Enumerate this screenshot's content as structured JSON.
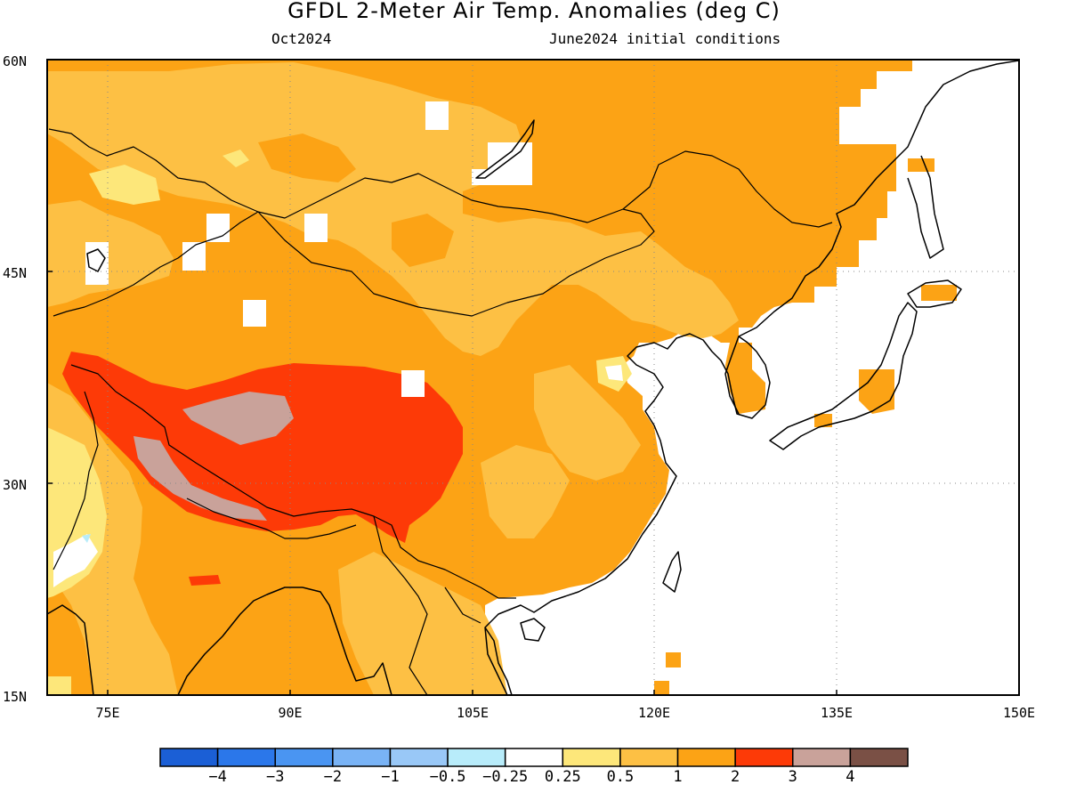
{
  "header": {
    "title": "GFDL 2-Meter Air Temp. Anomalies (deg C)",
    "valid_month": "Oct2024",
    "init_conditions": "June2024 initial conditions"
  },
  "map": {
    "lon_range": [
      70,
      150
    ],
    "lat_range": [
      15,
      60
    ],
    "lat_ticks": [
      "15N",
      "30N",
      "45N",
      "60N"
    ],
    "lon_ticks": [
      "75E",
      "90E",
      "105E",
      "120E",
      "135E",
      "150E"
    ],
    "gridlines": "dotted",
    "ocean_color": "#ffffff",
    "coastline_color": "#000000"
  },
  "colorbar": {
    "colors": [
      "#1b5fd6",
      "#2b77ea",
      "#4a95f2",
      "#79b3f5",
      "#99c8f7",
      "#b8ecfa",
      "#ffffff",
      "#fde77a",
      "#fdc044",
      "#fca315",
      "#fd3a07",
      "#c9a29a",
      "#7a5045"
    ],
    "labels": [
      "−4",
      "−3",
      "−2",
      "−1",
      "−0.5",
      "−0.25",
      "0.25",
      "0.5",
      "1",
      "2",
      "3",
      "4"
    ]
  }
}
